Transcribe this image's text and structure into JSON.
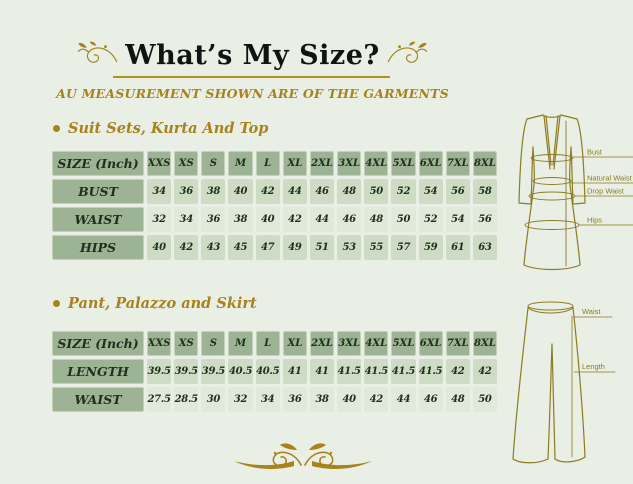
{
  "header": {
    "title": "What’s My Size?",
    "subtitle": "AU MEASUREMENT SHOWN ARE OF THE GARMENTS"
  },
  "colors": {
    "background": "#e9efe4",
    "header_cell_green": "#9cb394",
    "value_cell_green": "#cedcc6",
    "value_cell_pale": "#e0e9da",
    "gold_accent": "#a8821c",
    "title_text": "#121212",
    "cell_text": "#222e1e",
    "illustration_olive": "#8c7b22"
  },
  "illustrations": {
    "kurta": {
      "bust_label": "Bust",
      "natural_waist_label": "Natural Waist",
      "drop_waist_label": "Drop Waist",
      "hips_label": "Hips"
    },
    "pants": {
      "waist_label": "Waist",
      "length_label": "Length"
    }
  },
  "chart_data": [
    {
      "type": "table",
      "title": "Suit Sets, Kurta And Top",
      "columns": [
        "SIZE (Inch)",
        "XXS",
        "XS",
        "S",
        "M",
        "L",
        "XL",
        "2XL",
        "3XL",
        "4XL",
        "5XL",
        "6XL",
        "7XL",
        "8XL"
      ],
      "rows": [
        [
          "BUST",
          34,
          36,
          38,
          40,
          42,
          44,
          46,
          48,
          50,
          52,
          54,
          56,
          58
        ],
        [
          "WAIST",
          32,
          34,
          36,
          38,
          40,
          42,
          44,
          46,
          48,
          50,
          52,
          54,
          56
        ],
        [
          "HIPS",
          40,
          42,
          43,
          45,
          47,
          49,
          51,
          53,
          55,
          57,
          59,
          61,
          63
        ]
      ]
    },
    {
      "type": "table",
      "title": "Pant, Palazzo and Skirt",
      "columns": [
        "SIZE (Inch)",
        "XXS",
        "XS",
        "S",
        "M",
        "L",
        "XL",
        "2XL",
        "3XL",
        "4XL",
        "5XL",
        "6XL",
        "7XL",
        "8XL"
      ],
      "rows": [
        [
          "LENGTH",
          39.5,
          39.5,
          39.5,
          40.5,
          40.5,
          41,
          41,
          41.5,
          41.5,
          41.5,
          41.5,
          42,
          42
        ],
        [
          "WAIST",
          27.5,
          28.5,
          30,
          32,
          34,
          36,
          38,
          40,
          42,
          44,
          46,
          48,
          50
        ]
      ]
    }
  ]
}
